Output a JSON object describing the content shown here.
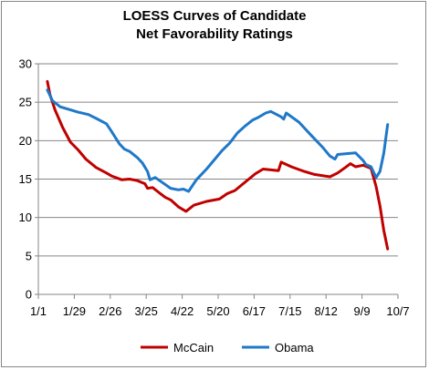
{
  "chart_data": {
    "type": "line",
    "title_lines": [
      "LOESS Curves of Candidate",
      "Net Favorability Ratings"
    ],
    "xlabel": "",
    "ylabel": "",
    "ylim": [
      0,
      30
    ],
    "yticks": [
      0,
      5,
      10,
      15,
      20,
      25,
      30
    ],
    "x_ticks": [
      {
        "label": "1/1",
        "day": 0
      },
      {
        "label": "1/29",
        "day": 28
      },
      {
        "label": "2/26",
        "day": 56
      },
      {
        "label": "3/25",
        "day": 84
      },
      {
        "label": "4/22",
        "day": 112
      },
      {
        "label": "5/20",
        "day": 140
      },
      {
        "label": "6/17",
        "day": 168
      },
      {
        "label": "7/15",
        "day": 196
      },
      {
        "label": "8/12",
        "day": 224
      },
      {
        "label": "9/9",
        "day": 252
      },
      {
        "label": "10/7",
        "day": 280
      }
    ],
    "xlim": [
      0,
      280
    ],
    "grid": "horizontal",
    "legend_position": "bottom",
    "series": [
      {
        "name": "McCain",
        "color": "#c00000",
        "points": [
          [
            7,
            27.7
          ],
          [
            9,
            26.0
          ],
          [
            13,
            24.0
          ],
          [
            19,
            21.7
          ],
          [
            25,
            19.8
          ],
          [
            31,
            18.8
          ],
          [
            37,
            17.6
          ],
          [
            45,
            16.5
          ],
          [
            53,
            15.8
          ],
          [
            57,
            15.4
          ],
          [
            65,
            14.9
          ],
          [
            71,
            15.0
          ],
          [
            77,
            14.8
          ],
          [
            83,
            14.4
          ],
          [
            85,
            13.8
          ],
          [
            89,
            13.9
          ],
          [
            95,
            13.1
          ],
          [
            99,
            12.6
          ],
          [
            103,
            12.3
          ],
          [
            109,
            11.4
          ],
          [
            115,
            10.8
          ],
          [
            121,
            11.6
          ],
          [
            131,
            12.1
          ],
          [
            141,
            12.4
          ],
          [
            147,
            13.1
          ],
          [
            153,
            13.5
          ],
          [
            161,
            14.6
          ],
          [
            169,
            15.7
          ],
          [
            175,
            16.3
          ],
          [
            187,
            16.1
          ],
          [
            189,
            17.2
          ],
          [
            197,
            16.6
          ],
          [
            207,
            16.0
          ],
          [
            215,
            15.6
          ],
          [
            227,
            15.3
          ],
          [
            233,
            15.8
          ],
          [
            239,
            16.5
          ],
          [
            243,
            17.0
          ],
          [
            247,
            16.6
          ],
          [
            253,
            16.8
          ],
          [
            259,
            16.4
          ],
          [
            263,
            14.0
          ],
          [
            266,
            11.5
          ],
          [
            269,
            8.3
          ],
          [
            272,
            5.9
          ]
        ]
      },
      {
        "name": "Obama",
        "color": "#1f78c8",
        "points": [
          [
            7,
            26.6
          ],
          [
            11,
            25.2
          ],
          [
            17,
            24.4
          ],
          [
            25,
            24.0
          ],
          [
            31,
            23.7
          ],
          [
            39,
            23.4
          ],
          [
            45,
            22.9
          ],
          [
            53,
            22.2
          ],
          [
            57,
            21.2
          ],
          [
            63,
            19.6
          ],
          [
            67,
            18.9
          ],
          [
            71,
            18.6
          ],
          [
            77,
            17.8
          ],
          [
            81,
            17.1
          ],
          [
            85,
            16.0
          ],
          [
            87,
            14.9
          ],
          [
            91,
            15.2
          ],
          [
            97,
            14.5
          ],
          [
            103,
            13.8
          ],
          [
            109,
            13.6
          ],
          [
            113,
            13.7
          ],
          [
            117,
            13.4
          ],
          [
            123,
            14.9
          ],
          [
            131,
            16.3
          ],
          [
            137,
            17.5
          ],
          [
            143,
            18.7
          ],
          [
            149,
            19.7
          ],
          [
            155,
            21.0
          ],
          [
            161,
            21.9
          ],
          [
            167,
            22.7
          ],
          [
            171,
            23.0
          ],
          [
            177,
            23.6
          ],
          [
            181,
            23.8
          ],
          [
            189,
            23.1
          ],
          [
            191,
            22.8
          ],
          [
            193,
            23.6
          ],
          [
            203,
            22.4
          ],
          [
            213,
            20.6
          ],
          [
            221,
            19.2
          ],
          [
            227,
            18.0
          ],
          [
            231,
            17.6
          ],
          [
            233,
            18.2
          ],
          [
            239,
            18.3
          ],
          [
            247,
            18.4
          ],
          [
            253,
            17.4
          ],
          [
            255,
            16.9
          ],
          [
            259,
            16.6
          ],
          [
            263,
            15.2
          ],
          [
            266,
            16.0
          ],
          [
            269,
            18.4
          ],
          [
            272,
            22.1
          ]
        ]
      }
    ]
  }
}
